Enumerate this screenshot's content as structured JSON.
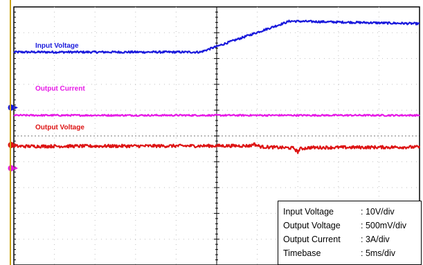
{
  "chart_data": {
    "type": "line",
    "grid": true,
    "x_divisions": 10,
    "y_divisions": 10,
    "series": [
      {
        "name": "Input Voltage",
        "color": "#1a1adc",
        "x": [
          0,
          4.6,
          6.8,
          10
        ],
        "y": [
          8.25,
          8.25,
          9.45,
          9.35
        ],
        "noise": 0.04
      },
      {
        "name": "Output Current",
        "color": "#e619e6",
        "x": [
          0,
          10
        ],
        "y": [
          5.8,
          5.8
        ],
        "noise": 0.03
      },
      {
        "name": "Output Voltage",
        "color": "#dd1414",
        "x": [
          0,
          5.85,
          5.9,
          6.0,
          6.1,
          6.9,
          7.0,
          7.05,
          7.3,
          10
        ],
        "y": [
          4.6,
          4.62,
          4.7,
          4.63,
          4.58,
          4.53,
          4.38,
          4.5,
          4.55,
          4.57
        ],
        "noise": 0.06
      }
    ],
    "markers": [
      {
        "name": "blue-ground-marker",
        "color": "#1a1adc",
        "y": 6.1
      },
      {
        "name": "red-ground-marker",
        "color": "#dd1414",
        "y": 4.65
      },
      {
        "name": "magenta-ground-marker",
        "color": "#e619e6",
        "y": 3.75
      }
    ],
    "trigger_marker": {
      "color": "#c8a000"
    }
  },
  "labels": {
    "input_voltage": "Input Voltage",
    "output_current": "Output Current",
    "output_voltage": "Output Voltage"
  },
  "info_box": {
    "rows": [
      {
        "name": "Input Voltage",
        "value": ": 10V/div"
      },
      {
        "name": "Output Voltage",
        "value": ": 500mV/div"
      },
      {
        "name": "Output Current",
        "value": ": 3A/div"
      },
      {
        "name": "Timebase",
        "value": ": 5ms/div"
      }
    ]
  }
}
